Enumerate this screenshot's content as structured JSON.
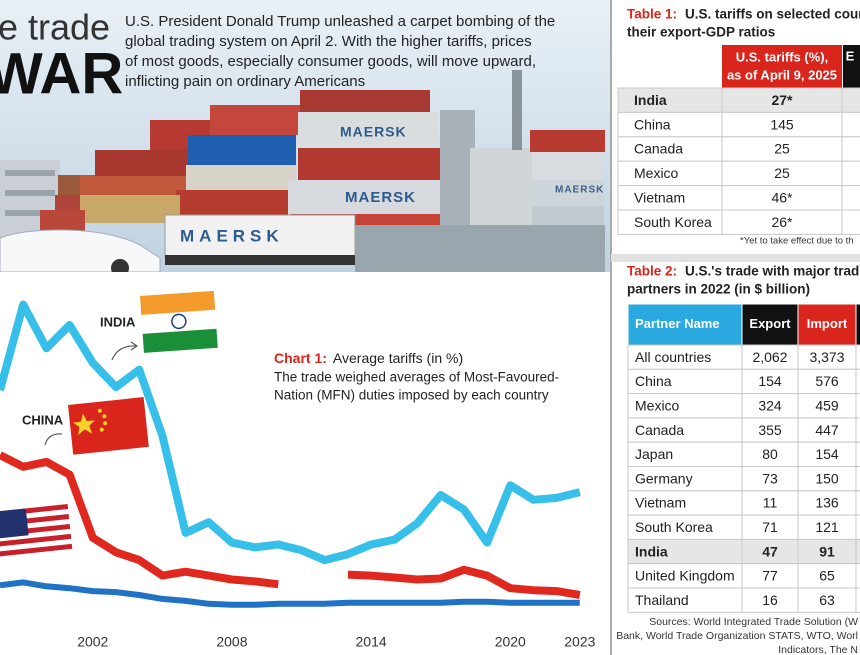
{
  "header": {
    "title_lines": [
      "e trade",
      "WAR"
    ],
    "intro_lines": [
      "U.S. President Donald Trump unleashed a carpet bombing of the",
      "global trading system on April 2. With the higher tariffs, prices",
      "of most goods, especially consumer goods, will move upward,",
      "inflicting pain on ordinary Americans"
    ],
    "photo_texts": [
      "MAERSK",
      "MAERSK",
      "MAERSK",
      "MAERSK"
    ]
  },
  "chart_data": {
    "type": "line",
    "title_label": "Chart 1:",
    "title": "Average tariffs (in %)",
    "subtitle_lines": [
      "The trade weighed averages of Most-Favoured-",
      "Nation (MFN) duties imposed by each country"
    ],
    "x": [
      1998,
      1999,
      2000,
      2001,
      2002,
      2003,
      2004,
      2005,
      2006,
      2007,
      2008,
      2009,
      2010,
      2011,
      2012,
      2013,
      2014,
      2015,
      2016,
      2017,
      2018,
      2019,
      2020,
      2021,
      2022,
      2023
    ],
    "xlim": [
      1998,
      2024.3
    ],
    "xticks": [
      2002,
      2008,
      2014,
      2020,
      2023
    ],
    "ylim": [
      0,
      35
    ],
    "series": [
      {
        "name": "INDIA",
        "color": "#35bfe9",
        "values": [
          24.7,
          33.5,
          29,
          31.4,
          27.5,
          25,
          26.8,
          20,
          10,
          11.1,
          9,
          8.5,
          8.8,
          8.2,
          7.2,
          7.8,
          8.8,
          9.3,
          11,
          13.9,
          12.4,
          9,
          14.9,
          13.4,
          13.6,
          14.2
        ]
      },
      {
        "name": "CHINA",
        "color": "#e0281f",
        "values": [
          18,
          16.8,
          17.3,
          16,
          9.5,
          8,
          7.2,
          5.6,
          6,
          5.6,
          5.2,
          5,
          4.7,
          null,
          null,
          5.7,
          5.6,
          5.4,
          5.2,
          5.3,
          6.2,
          5.6,
          4.3,
          4.1,
          4,
          3.6
        ]
      },
      {
        "color": "#1f72c4",
        "values": [
          4.6,
          4.9,
          4.5,
          4.3,
          4,
          3.9,
          3.6,
          3.2,
          3,
          2.7,
          2.6,
          2.6,
          2.7,
          2.7,
          2.7,
          2.8,
          2.8,
          2.8,
          2.8,
          2.8,
          2.9,
          2.9,
          2.8,
          2.8,
          2.8,
          2.8
        ]
      }
    ]
  },
  "table1": {
    "label": "Table 1:",
    "title_lines": [
      "U.S. tariffs on selected count",
      "their export-GDP ratios"
    ],
    "columns": [
      [
        "U.S. tariffs (%),",
        "as of April 9, 2025"
      ],
      [
        "E"
      ]
    ],
    "rows": [
      [
        "India",
        "27*"
      ],
      [
        "China",
        "145"
      ],
      [
        "Canada",
        "25"
      ],
      [
        "Mexico",
        "25"
      ],
      [
        "Vietnam",
        "46*"
      ],
      [
        "South Korea",
        "26*"
      ]
    ],
    "highlight_row": 0,
    "footnote": "*Yet to take effect due to th"
  },
  "table2": {
    "label": "Table 2:",
    "title_lines": [
      "U.S.'s trade with major tradi",
      "partners in 2022 (in $ billion)"
    ],
    "columns": [
      "Partner Name",
      "Export",
      "Import"
    ],
    "rows": [
      [
        "All countries",
        "2,062",
        "3,373"
      ],
      [
        "China",
        "154",
        "576"
      ],
      [
        "Mexico",
        "324",
        "459"
      ],
      [
        "Canada",
        "355",
        "447"
      ],
      [
        "Japan",
        "80",
        "154"
      ],
      [
        "Germany",
        "73",
        "150"
      ],
      [
        "Vietnam",
        "11",
        "136"
      ],
      [
        "South Korea",
        "71",
        "121"
      ],
      [
        "India",
        "47",
        "91"
      ],
      [
        "United Kingdom",
        "77",
        "65"
      ],
      [
        "Thailand",
        "16",
        "63"
      ]
    ],
    "highlight_row": 8,
    "sources_lines": [
      "Sources: World Integrated Trade Solution (W",
      "Bank, World Trade Organization STATS, WTO, Worl",
      "Indicators, The N"
    ]
  }
}
